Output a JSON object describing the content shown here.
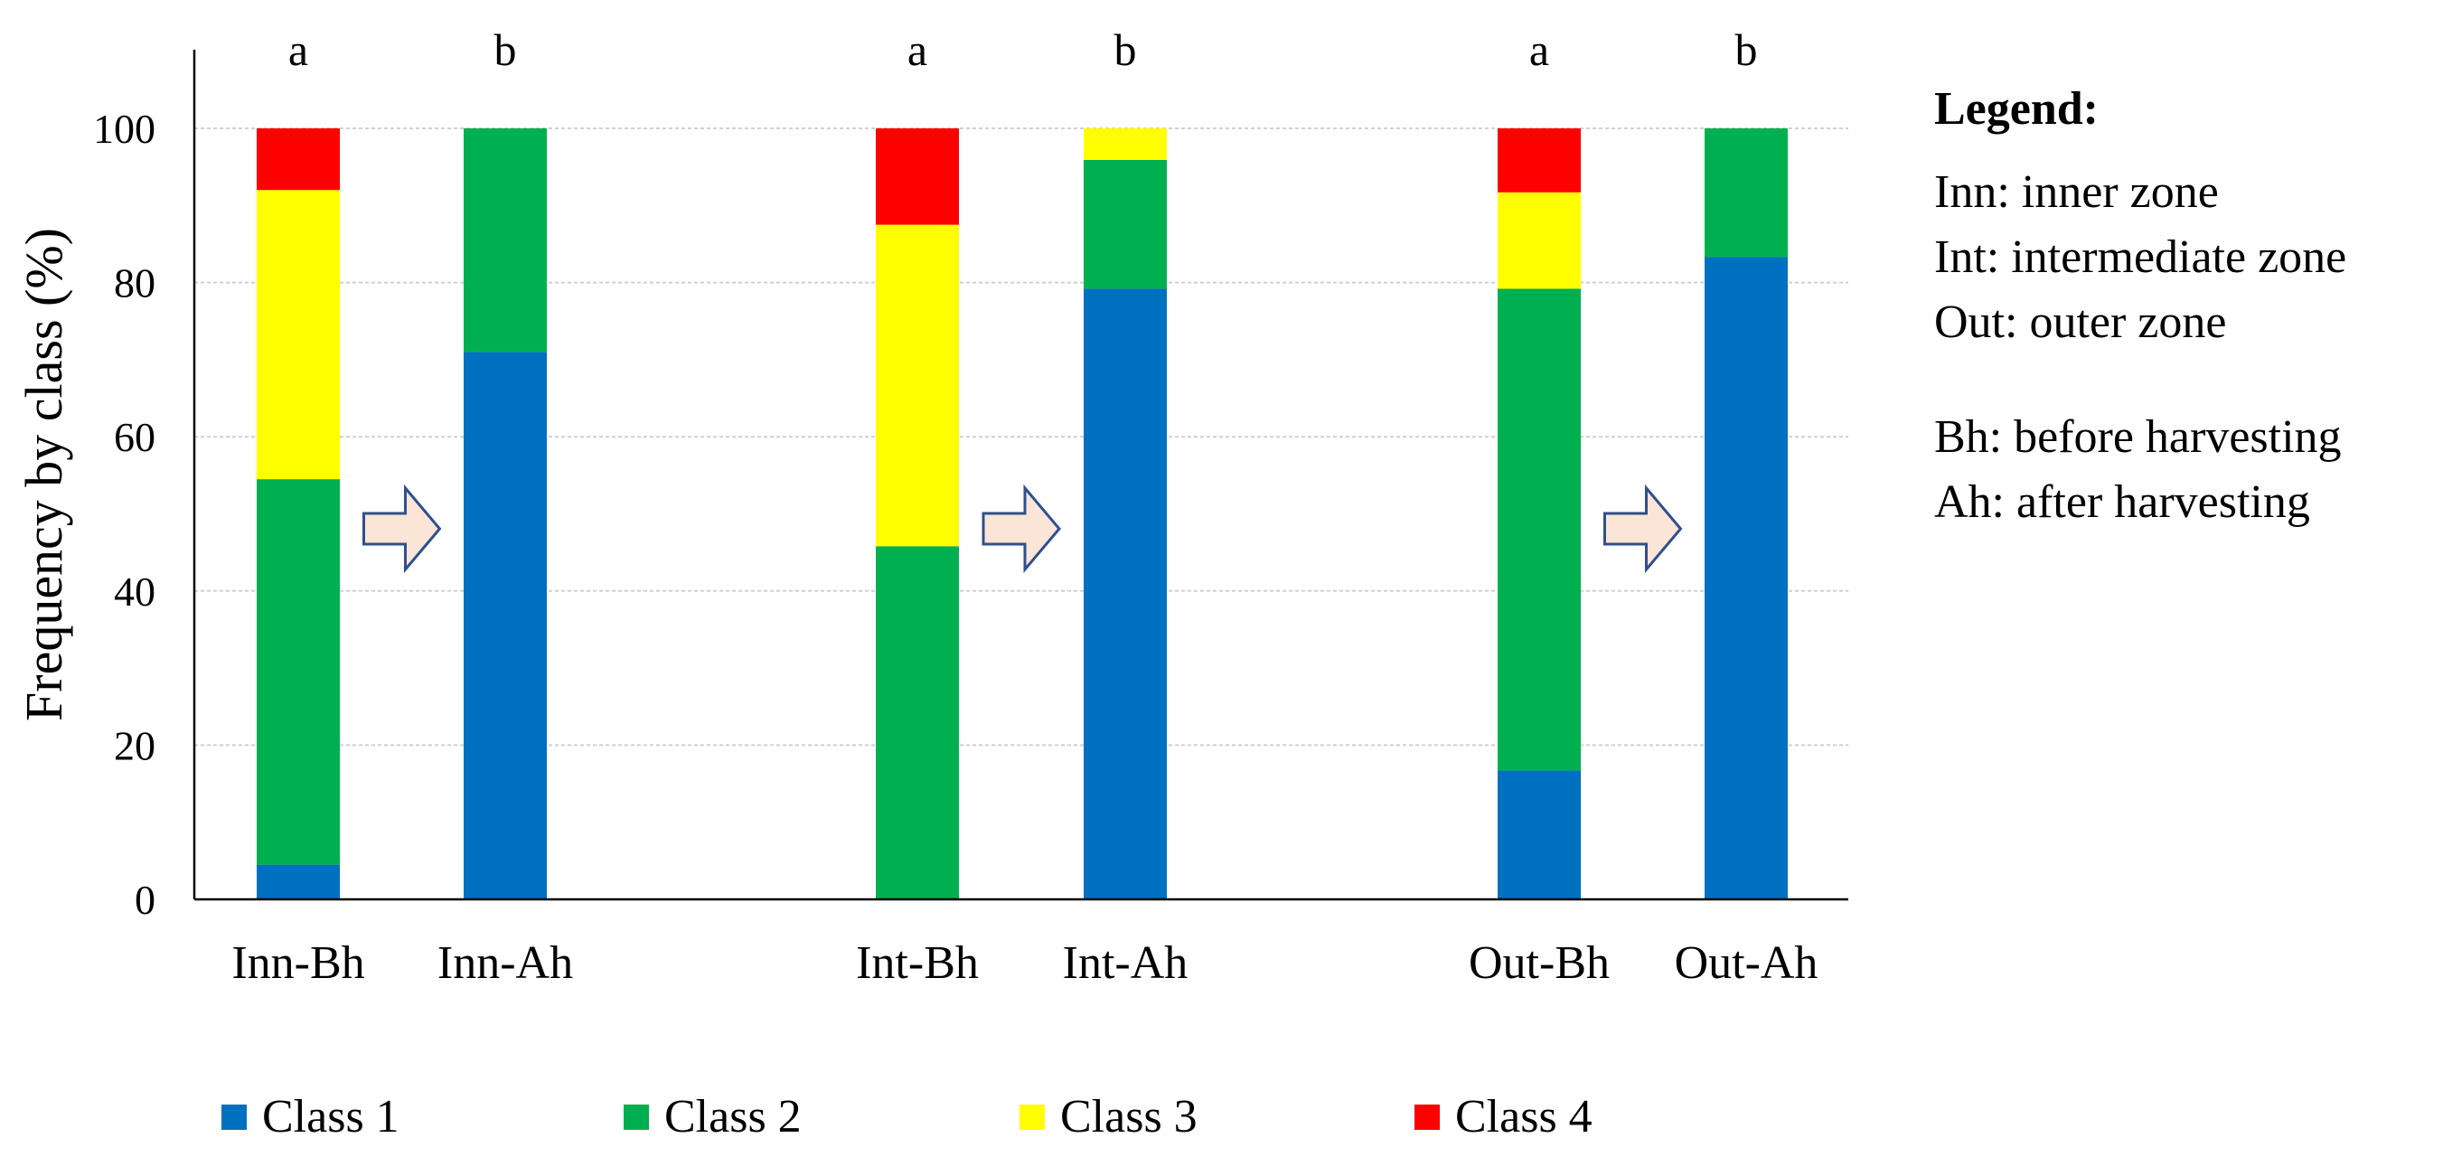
{
  "chart_data": {
    "type": "bar",
    "stacked": true,
    "title": "",
    "xlabel": "",
    "ylabel": "Frequency by class (%)",
    "ylim": [
      0,
      110
    ],
    "yticks": [
      "0",
      "20",
      "40",
      "60",
      "80",
      "100"
    ],
    "ytick_values": [
      0,
      20,
      40,
      60,
      80,
      100
    ],
    "grid": true,
    "categories": [
      "Inn-Bh",
      "Inn-Ah",
      "Int-Bh",
      "Int-Ah",
      "Out-Bh",
      "Out-Ah"
    ],
    "significance_letters": [
      "a",
      "b",
      "a",
      "b",
      "a",
      "b"
    ],
    "series": [
      {
        "name": "Class 1",
        "color": "#0070C0",
        "values": [
          4.5,
          71,
          0,
          79.2,
          16.7,
          83.3
        ]
      },
      {
        "name": "Class 2",
        "color": "#00B050",
        "values": [
          50,
          29,
          45.8,
          16.7,
          62.5,
          16.7
        ]
      },
      {
        "name": "Class 3",
        "color": "#FFFF00",
        "values": [
          37.5,
          0,
          41.7,
          4.1,
          12.5,
          0
        ]
      },
      {
        "name": "Class 4",
        "color": "#FF0000",
        "values": [
          8,
          0,
          12.5,
          0,
          8.3,
          0
        ]
      }
    ],
    "transition_arrows": [
      [
        "Inn-Bh",
        "Inn-Ah"
      ],
      [
        "Int-Bh",
        "Int-Ah"
      ],
      [
        "Out-Bh",
        "Out-Ah"
      ]
    ],
    "legend_position": "bottom"
  },
  "side_legend": {
    "title": "Legend:",
    "zones": [
      "Inn: inner zone",
      "Int: intermediate zone",
      "Out: outer zone"
    ],
    "periods": [
      "Bh: before harvesting",
      "Ah: after harvesting"
    ]
  },
  "colors": {
    "axis": "#000000",
    "gridline": "#D0D0D0",
    "arrow_fill": "#FBE5D6",
    "arrow_stroke": "#2F4F8F"
  }
}
